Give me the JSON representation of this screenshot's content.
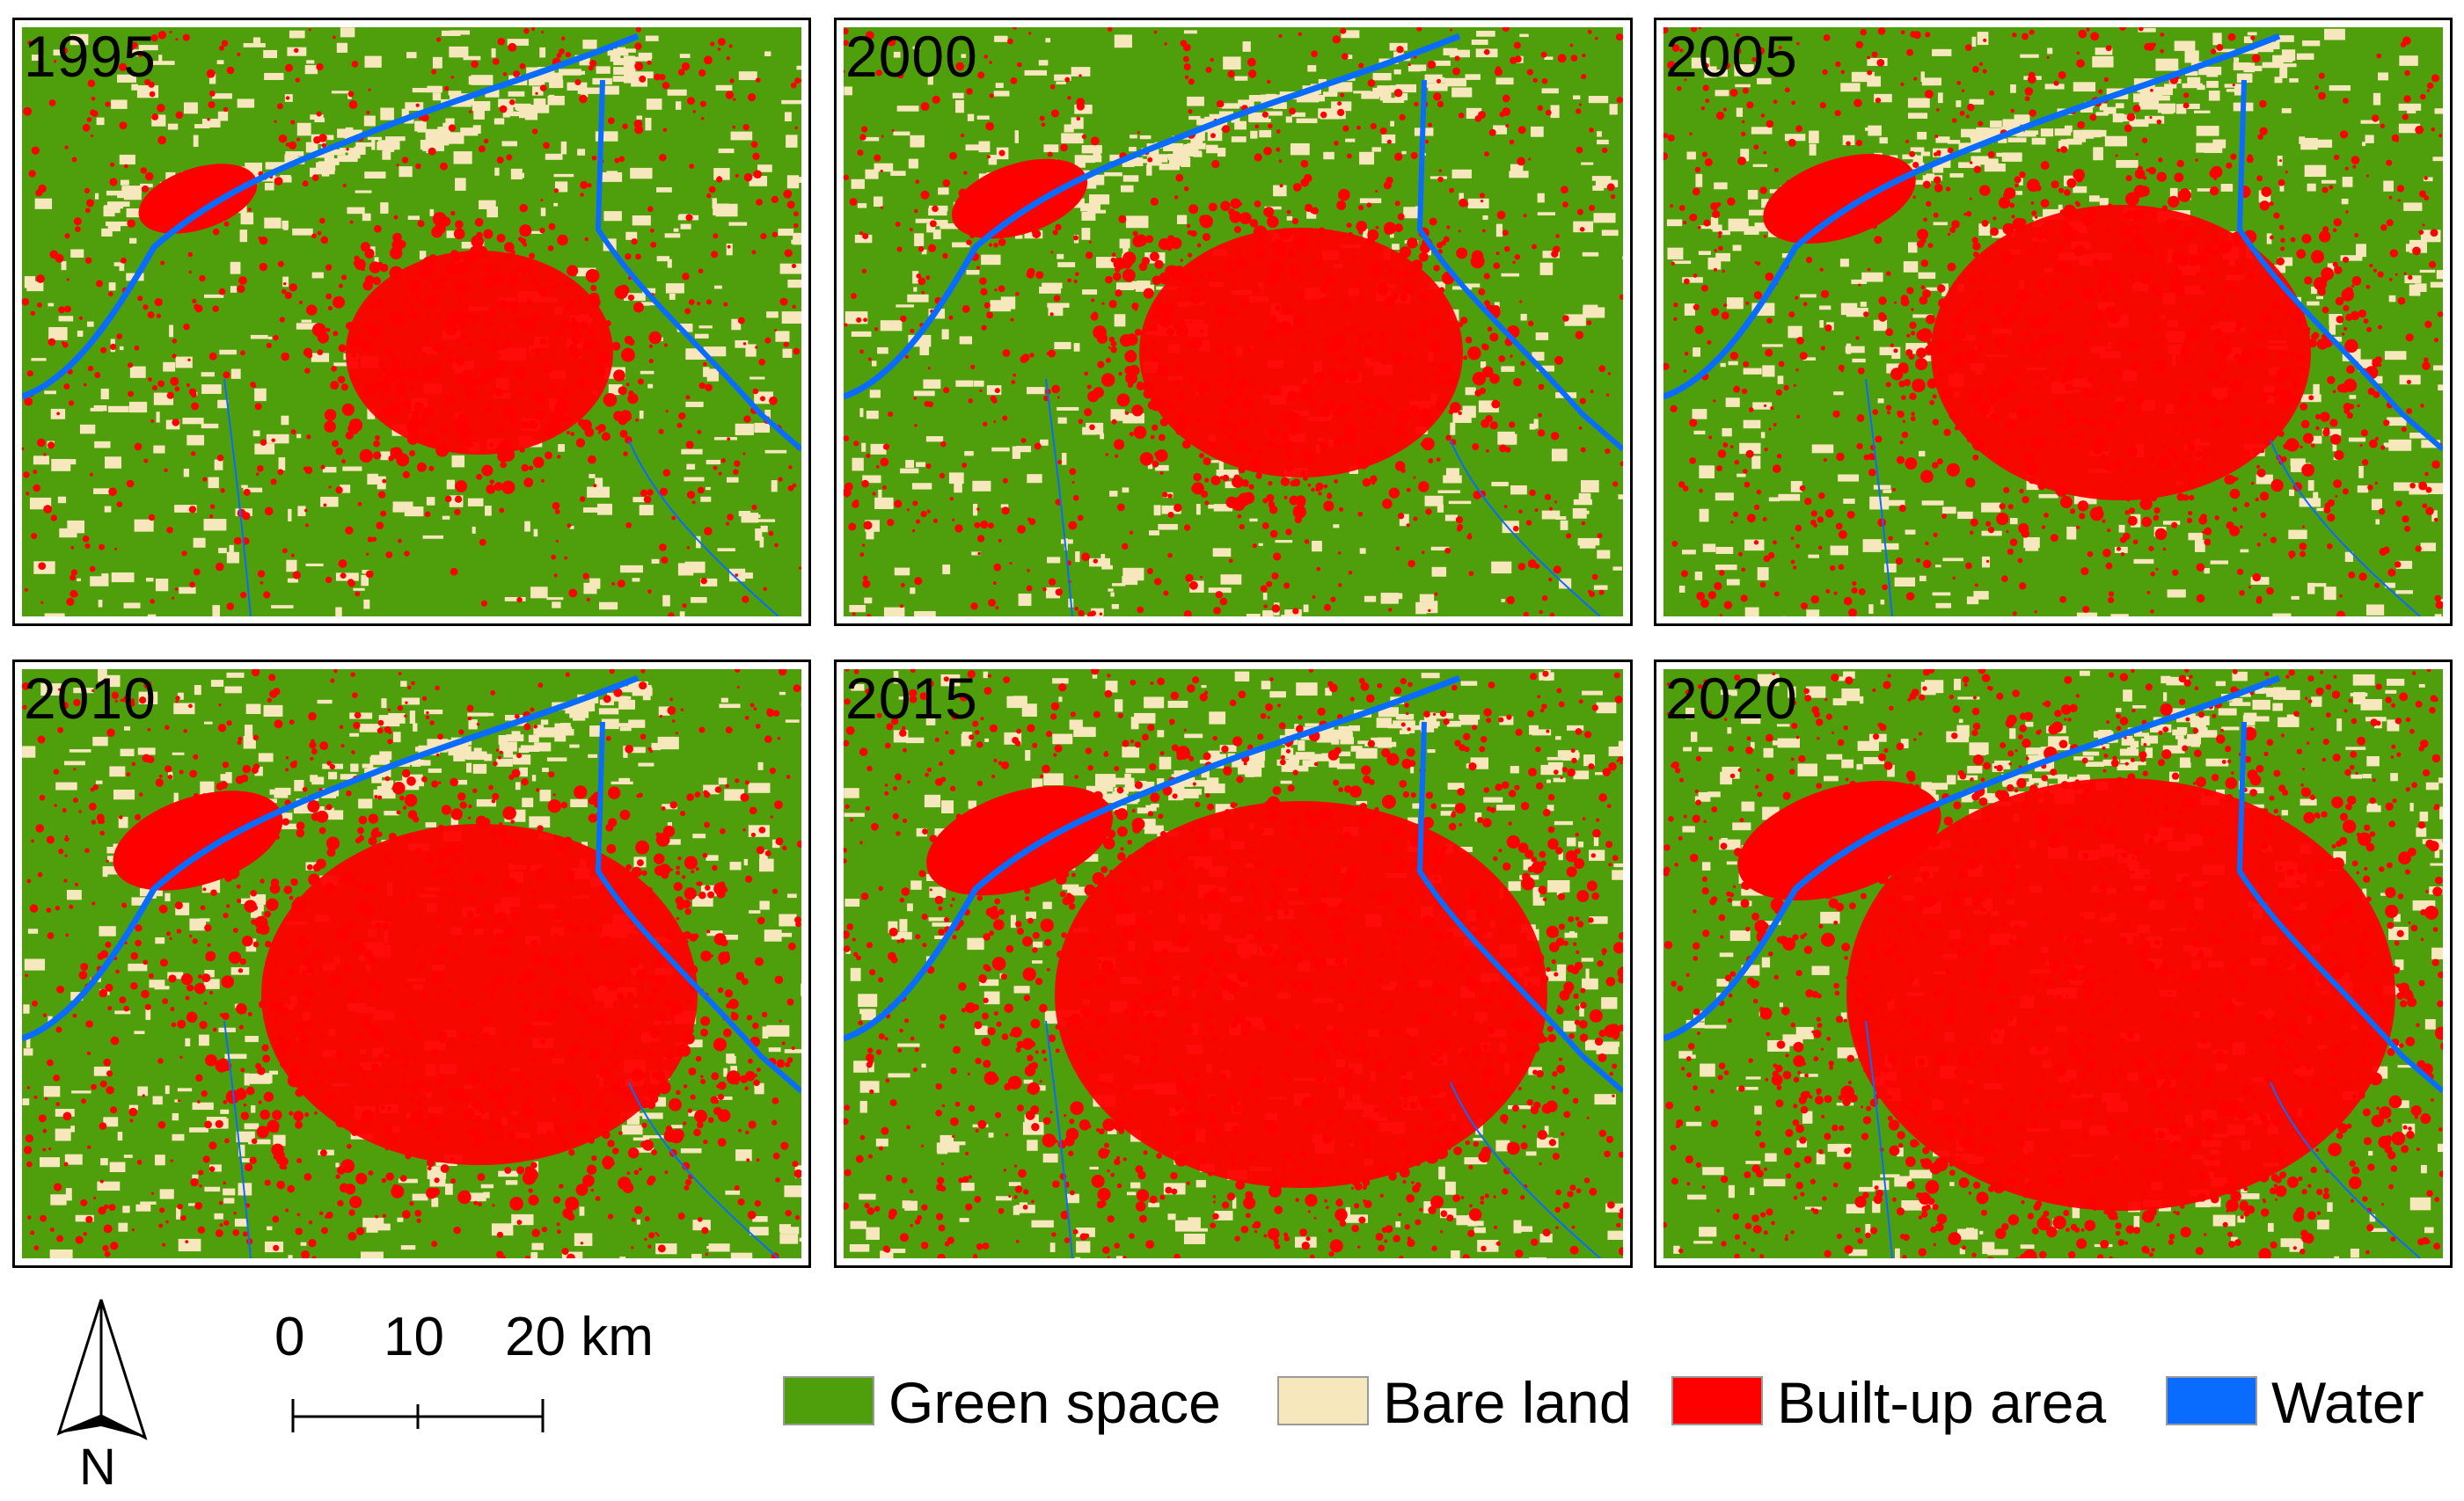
{
  "map_data": {
    "panels": [
      {
        "year": "1995",
        "built_up_level": 1
      },
      {
        "year": "2000",
        "built_up_level": 2
      },
      {
        "year": "2005",
        "built_up_level": 3
      },
      {
        "year": "2010",
        "built_up_level": 4
      },
      {
        "year": "2015",
        "built_up_level": 5
      },
      {
        "year": "2020",
        "built_up_level": 6
      }
    ],
    "legend": [
      {
        "key": "green",
        "label": "Green space",
        "color": "#4f9e0b"
      },
      {
        "key": "bare",
        "label": "Bare land",
        "color": "#f6e7bc"
      },
      {
        "key": "built",
        "label": "Built-up area",
        "color": "#ff0000"
      },
      {
        "key": "water",
        "label": "Water",
        "color": "#0a6cff"
      }
    ],
    "scale_bar": {
      "tick_labels": [
        "0",
        "10",
        "20 km"
      ]
    },
    "north_arrow": {
      "label": "N"
    }
  }
}
